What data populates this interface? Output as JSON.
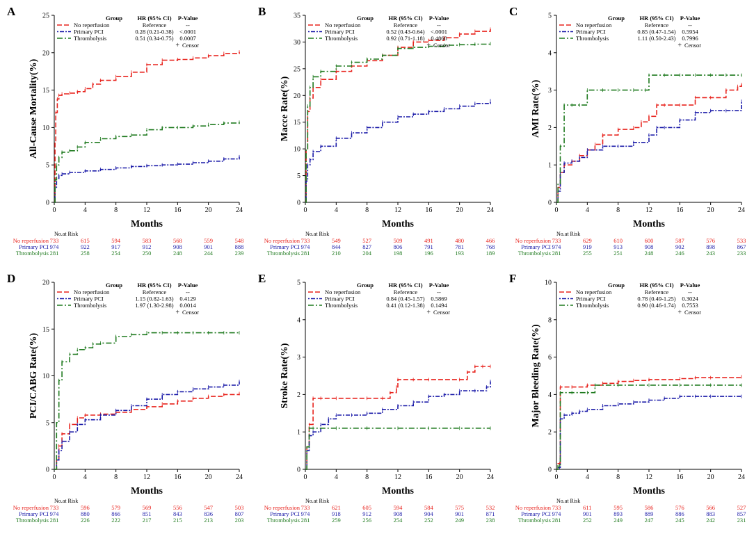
{
  "colors": {
    "no_reperfusion": "#e8231d",
    "primary_pci": "#1a1aa8",
    "thrombolysis": "#1f7a1f",
    "axis": "#000000"
  },
  "common": {
    "xlabel": "Months",
    "risk_header": "No.at Risk",
    "legend_headers": {
      "group": "Group",
      "hr": "HR (95% CI)",
      "p": "P-Value"
    },
    "censor_label": "Censor",
    "censor_symbol": "+",
    "group_names": [
      "No reperfusion",
      "Primary PCI",
      "Thrombolysis"
    ],
    "risk_times": [
      0,
      4,
      8,
      12,
      16,
      20,
      24
    ]
  },
  "chart_data": [
    {
      "type": "line",
      "panel_letter": "A",
      "ylabel": "All-Cause Mortality(%)",
      "ylim": [
        0,
        25
      ],
      "yticks": [
        0,
        5,
        10,
        15,
        20,
        25
      ],
      "xlim": [
        0,
        24
      ],
      "xticks": [
        0,
        4,
        8,
        12,
        16,
        20,
        24
      ],
      "legend": [
        {
          "name": "No reperfusion",
          "hr": "Reference",
          "p": "--"
        },
        {
          "name": "Primary PCI",
          "hr": "0.28 (0.21-0.38)",
          "p": "<.0001"
        },
        {
          "name": "Thrombolysis",
          "hr": "0.51 (0.34-0.75)",
          "p": "0.0007"
        }
      ],
      "series": [
        {
          "name": "No reperfusion",
          "x": [
            0,
            0.1,
            0.2,
            0.4,
            0.6,
            1,
            2,
            3,
            4,
            5,
            6,
            8,
            10,
            12,
            14,
            16,
            18,
            20,
            22,
            24
          ],
          "y": [
            0,
            8,
            12,
            13.8,
            14.3,
            14.5,
            14.6,
            14.8,
            15.2,
            15.8,
            16.3,
            16.8,
            17.4,
            18.4,
            19.0,
            19.1,
            19.3,
            19.6,
            19.9,
            20.1
          ]
        },
        {
          "name": "Primary PCI",
          "x": [
            0,
            0.1,
            0.3,
            0.6,
            1,
            2,
            4,
            6,
            8,
            10,
            12,
            14,
            16,
            18,
            20,
            22,
            24
          ],
          "y": [
            0,
            2.0,
            3.2,
            3.6,
            3.8,
            4.0,
            4.2,
            4.4,
            4.6,
            4.8,
            4.9,
            5.0,
            5.1,
            5.3,
            5.5,
            5.8,
            6.1
          ]
        },
        {
          "name": "Thrombolysis",
          "x": [
            0,
            0.1,
            0.3,
            0.6,
            1,
            2,
            3,
            4,
            6,
            8,
            10,
            12,
            14,
            16,
            18,
            20,
            22,
            24
          ],
          "y": [
            0,
            3.0,
            5.0,
            6.0,
            6.7,
            6.9,
            7.4,
            8.0,
            8.5,
            8.8,
            9.0,
            9.7,
            10.0,
            10.0,
            10.2,
            10.4,
            10.6,
            10.7
          ]
        }
      ],
      "risk": [
        [
          733,
          615,
          594,
          583,
          568,
          559,
          548
        ],
        [
          974,
          922,
          917,
          912,
          908,
          901,
          888
        ],
        [
          281,
          258,
          254,
          250,
          248,
          244,
          239
        ]
      ]
    },
    {
      "type": "line",
      "panel_letter": "B",
      "ylabel": "Macce Rate(%)",
      "ylim": [
        0,
        35
      ],
      "yticks": [
        0,
        5,
        10,
        15,
        20,
        25,
        30,
        35
      ],
      "xlim": [
        0,
        24
      ],
      "xticks": [
        0,
        4,
        8,
        12,
        16,
        20,
        24
      ],
      "legend": [
        {
          "name": "No reperfusion",
          "hr": "Reference",
          "p": "--"
        },
        {
          "name": "Primary PCI",
          "hr": "0.52 (0.43-0.64)",
          "p": "<.0001"
        },
        {
          "name": "Thrombolysis",
          "hr": "0.92 (0.71-1.18)",
          "p": "0.4868"
        }
      ],
      "series": [
        {
          "name": "No reperfusion",
          "x": [
            0,
            0.1,
            0.3,
            0.6,
            1,
            2,
            4,
            6,
            8,
            10,
            12,
            14,
            16,
            18,
            20,
            22,
            24
          ],
          "y": [
            0,
            10,
            17,
            19.5,
            21.5,
            23.0,
            24.5,
            25.5,
            26.5,
            27.5,
            29.0,
            30.0,
            30.3,
            30.8,
            31.5,
            32.0,
            32.4
          ]
        },
        {
          "name": "Primary PCI",
          "x": [
            0,
            0.1,
            0.3,
            0.6,
            1,
            2,
            4,
            6,
            8,
            10,
            12,
            14,
            16,
            18,
            20,
            22,
            24
          ],
          "y": [
            0,
            4,
            7.0,
            8.0,
            9.5,
            10.5,
            12.0,
            13.0,
            14.0,
            15.0,
            16.0,
            16.5,
            17.0,
            17.5,
            18.0,
            18.5,
            19.0
          ]
        },
        {
          "name": "Thrombolysis",
          "x": [
            0,
            0.1,
            0.3,
            0.6,
            1,
            2,
            4,
            6,
            8,
            10,
            12,
            14,
            16,
            18,
            20,
            22,
            24
          ],
          "y": [
            0,
            10,
            18,
            21.5,
            23.5,
            24.5,
            25.5,
            26.2,
            26.8,
            27.5,
            28.8,
            29.0,
            29.2,
            29.4,
            29.5,
            29.6,
            29.7
          ]
        }
      ],
      "risk": [
        [
          733,
          549,
          527,
          509,
          491,
          480,
          466
        ],
        [
          974,
          844,
          827,
          806,
          791,
          781,
          768
        ],
        [
          281,
          210,
          204,
          198,
          196,
          193,
          189
        ]
      ]
    },
    {
      "type": "line",
      "panel_letter": "C",
      "ylabel": "AMI Rate(%)",
      "ylim": [
        0,
        5
      ],
      "yticks": [
        0,
        1,
        2,
        3,
        4,
        5
      ],
      "xlim": [
        0,
        24
      ],
      "xticks": [
        0,
        4,
        8,
        12,
        16,
        20,
        24
      ],
      "legend": [
        {
          "name": "No reperfusion",
          "hr": "Reference",
          "p": "--"
        },
        {
          "name": "Primary PCI",
          "hr": "0.85 (0.47-1.54)",
          "p": "0.5954"
        },
        {
          "name": "Thrombolysis",
          "hr": "1.11 (0.50-2.43)",
          "p": "0.7996"
        }
      ],
      "series": [
        {
          "name": "No reperfusion",
          "x": [
            0,
            0.2,
            0.5,
            1,
            2,
            3,
            4,
            5,
            6,
            8,
            10,
            11,
            12,
            13,
            14,
            16,
            18,
            20,
            22,
            23.5,
            24
          ],
          "y": [
            0,
            0.4,
            0.8,
            1.0,
            1.1,
            1.25,
            1.4,
            1.55,
            1.8,
            1.95,
            2.0,
            2.15,
            2.3,
            2.6,
            2.6,
            2.6,
            2.8,
            2.8,
            3.0,
            3.1,
            3.15
          ]
        },
        {
          "name": "Primary PCI",
          "x": [
            0,
            0.2,
            0.5,
            1,
            2,
            3,
            4,
            6,
            8,
            10,
            12,
            13,
            14,
            16,
            18,
            20,
            22,
            24
          ],
          "y": [
            0,
            0.3,
            0.8,
            1.05,
            1.1,
            1.2,
            1.4,
            1.5,
            1.5,
            1.6,
            1.8,
            2.0,
            2.0,
            2.2,
            2.4,
            2.45,
            2.45,
            2.7
          ]
        },
        {
          "name": "Thrombolysis",
          "x": [
            0,
            0.2,
            0.5,
            1,
            2,
            3,
            4,
            6,
            8,
            10,
            11.5,
            12,
            14,
            16,
            18,
            20,
            22,
            24
          ],
          "y": [
            0,
            0.5,
            1.5,
            2.6,
            2.6,
            2.6,
            3.0,
            3.0,
            3.0,
            3.0,
            3.0,
            3.4,
            3.4,
            3.4,
            3.4,
            3.4,
            3.4,
            3.4
          ]
        }
      ],
      "risk": [
        [
          733,
          629,
          610,
          600,
          587,
          576,
          533
        ],
        [
          974,
          919,
          913,
          908,
          902,
          898,
          867
        ],
        [
          281,
          255,
          251,
          248,
          246,
          243,
          233
        ]
      ]
    },
    {
      "type": "line",
      "panel_letter": "D",
      "ylabel": "PCI/CABG Rate(%)",
      "ylim": [
        0,
        20
      ],
      "yticks": [
        0,
        5,
        10,
        15,
        20
      ],
      "xlim": [
        0,
        24
      ],
      "xticks": [
        0,
        4,
        8,
        12,
        16,
        20,
        24
      ],
      "legend": [
        {
          "name": "No reperfusion",
          "hr": "Reference",
          "p": "--"
        },
        {
          "name": "Primary PCI",
          "hr": "1.15 (0.82-1.63)",
          "p": "0.4129"
        },
        {
          "name": "Thrombolysis",
          "hr": "1.97 (1.30-2.98)",
          "p": "0.0014"
        }
      ],
      "series": [
        {
          "name": "No reperfusion",
          "x": [
            0,
            0.3,
            0.6,
            1,
            2,
            3,
            4,
            6,
            8,
            10,
            12,
            14,
            16,
            18,
            20,
            22,
            24
          ],
          "y": [
            0,
            1.0,
            2.5,
            3.8,
            4.8,
            5.5,
            5.8,
            5.9,
            6.1,
            6.4,
            6.7,
            7.0,
            7.3,
            7.6,
            7.8,
            8.0,
            8.1
          ]
        },
        {
          "name": "Primary PCI",
          "x": [
            0,
            0.3,
            0.6,
            1,
            2,
            3,
            4,
            6,
            8,
            10,
            12,
            14,
            16,
            18,
            20,
            22,
            24
          ],
          "y": [
            0,
            1.0,
            2.0,
            3.0,
            4.0,
            4.8,
            5.3,
            5.8,
            6.3,
            6.8,
            7.5,
            8.0,
            8.3,
            8.6,
            8.8,
            9.0,
            9.4
          ]
        },
        {
          "name": "Thrombolysis",
          "x": [
            0,
            0.3,
            0.6,
            1,
            2,
            3,
            4,
            5,
            6,
            8,
            10,
            12,
            14,
            16,
            18,
            20,
            22,
            24
          ],
          "y": [
            0,
            5,
            9.5,
            11.5,
            12.3,
            12.8,
            13.0,
            13.4,
            13.5,
            14.2,
            14.4,
            14.6,
            14.6,
            14.6,
            14.6,
            14.6,
            14.6,
            14.6
          ]
        }
      ],
      "risk": [
        [
          733,
          596,
          579,
          569,
          556,
          547,
          503
        ],
        [
          974,
          880,
          866,
          851,
          843,
          836,
          807
        ],
        [
          281,
          226,
          222,
          217,
          215,
          213,
          203
        ]
      ]
    },
    {
      "type": "line",
      "panel_letter": "E",
      "ylabel": "Stroke Rate(%)",
      "ylim": [
        0,
        5
      ],
      "yticks": [
        0,
        1,
        2,
        3,
        4,
        5
      ],
      "xlim": [
        0,
        24
      ],
      "xticks": [
        0,
        4,
        8,
        12,
        16,
        20,
        24
      ],
      "legend": [
        {
          "name": "No reperfusion",
          "hr": "Reference",
          "p": "--"
        },
        {
          "name": "Primary PCI",
          "hr": "0.84 (0.45-1.57)",
          "p": "0.5869"
        },
        {
          "name": "Thrombolysis",
          "hr": "0.41 (0.12-1.38)",
          "p": "0.1494"
        }
      ],
      "series": [
        {
          "name": "No reperfusion",
          "x": [
            0,
            0.2,
            0.5,
            1,
            2,
            4,
            8,
            10,
            11,
            11.8,
            12,
            14,
            16,
            20,
            21,
            22,
            23,
            24
          ],
          "y": [
            0,
            0.6,
            1.2,
            1.9,
            1.9,
            1.9,
            1.9,
            1.9,
            2.05,
            2.2,
            2.4,
            2.4,
            2.4,
            2.4,
            2.6,
            2.75,
            2.75,
            2.75
          ]
        },
        {
          "name": "Primary PCI",
          "x": [
            0,
            0.2,
            0.5,
            1,
            2,
            3,
            4,
            6,
            8,
            10,
            12,
            14,
            16,
            18,
            20,
            22,
            23.5,
            24
          ],
          "y": [
            0,
            0.5,
            0.9,
            1.0,
            1.2,
            1.35,
            1.45,
            1.45,
            1.5,
            1.6,
            1.7,
            1.8,
            1.95,
            2.0,
            2.1,
            2.1,
            2.2,
            2.35
          ]
        },
        {
          "name": "Thrombolysis",
          "x": [
            0,
            0.2,
            0.5,
            1,
            4,
            8,
            12,
            16,
            20,
            24
          ],
          "y": [
            0,
            0.6,
            1.1,
            1.1,
            1.1,
            1.1,
            1.1,
            1.1,
            1.1,
            1.1
          ]
        }
      ],
      "risk": [
        [
          733,
          621,
          605,
          594,
          584,
          575,
          532
        ],
        [
          974,
          918,
          912,
          908,
          904,
          901,
          871
        ],
        [
          281,
          259,
          256,
          254,
          252,
          249,
          238
        ]
      ]
    },
    {
      "type": "line",
      "panel_letter": "F",
      "ylabel": "Major Bleeding Rate(%)",
      "ylim": [
        0,
        10
      ],
      "yticks": [
        0,
        2,
        4,
        6,
        8,
        10
      ],
      "xlim": [
        0,
        24
      ],
      "xticks": [
        0,
        4,
        8,
        12,
        16,
        20,
        24
      ],
      "legend": [
        {
          "name": "No reperfusion",
          "hr": "Reference",
          "p": "--"
        },
        {
          "name": "Primary PCI",
          "hr": "0.78 (0.49-1.25)",
          "p": "0.3024"
        },
        {
          "name": "Thrombolysis",
          "hr": "0.90 (0.46-1.74)",
          "p": "0.7553"
        }
      ],
      "series": [
        {
          "name": "No reperfusion",
          "x": [
            0,
            0.2,
            0.4,
            0.5,
            2,
            4,
            6,
            8,
            10,
            12,
            16,
            18,
            20,
            24
          ],
          "y": [
            0,
            0.3,
            0.3,
            4.4,
            4.4,
            4.5,
            4.6,
            4.7,
            4.75,
            4.8,
            4.85,
            4.9,
            4.9,
            4.95
          ]
        },
        {
          "name": "Primary PCI",
          "x": [
            0,
            0.2,
            0.4,
            0.5,
            1,
            2,
            3,
            4,
            6,
            8,
            10,
            12,
            14,
            16,
            18,
            20,
            24
          ],
          "y": [
            0,
            0.1,
            0.1,
            2.7,
            2.9,
            3.0,
            3.1,
            3.2,
            3.4,
            3.5,
            3.6,
            3.7,
            3.8,
            3.9,
            3.9,
            3.9,
            3.9
          ]
        },
        {
          "name": "Thrombolysis",
          "x": [
            0,
            0.2,
            0.4,
            0.5,
            2,
            4,
            5,
            8,
            12,
            16,
            20,
            24
          ],
          "y": [
            0,
            0.2,
            0.2,
            4.1,
            4.1,
            4.1,
            4.5,
            4.5,
            4.5,
            4.5,
            4.5,
            4.5
          ]
        }
      ],
      "risk": [
        [
          733,
          611,
          595,
          586,
          576,
          566,
          527
        ],
        [
          974,
          901,
          893,
          889,
          886,
          883,
          857
        ],
        [
          281,
          252,
          249,
          247,
          245,
          242,
          231
        ]
      ]
    }
  ]
}
